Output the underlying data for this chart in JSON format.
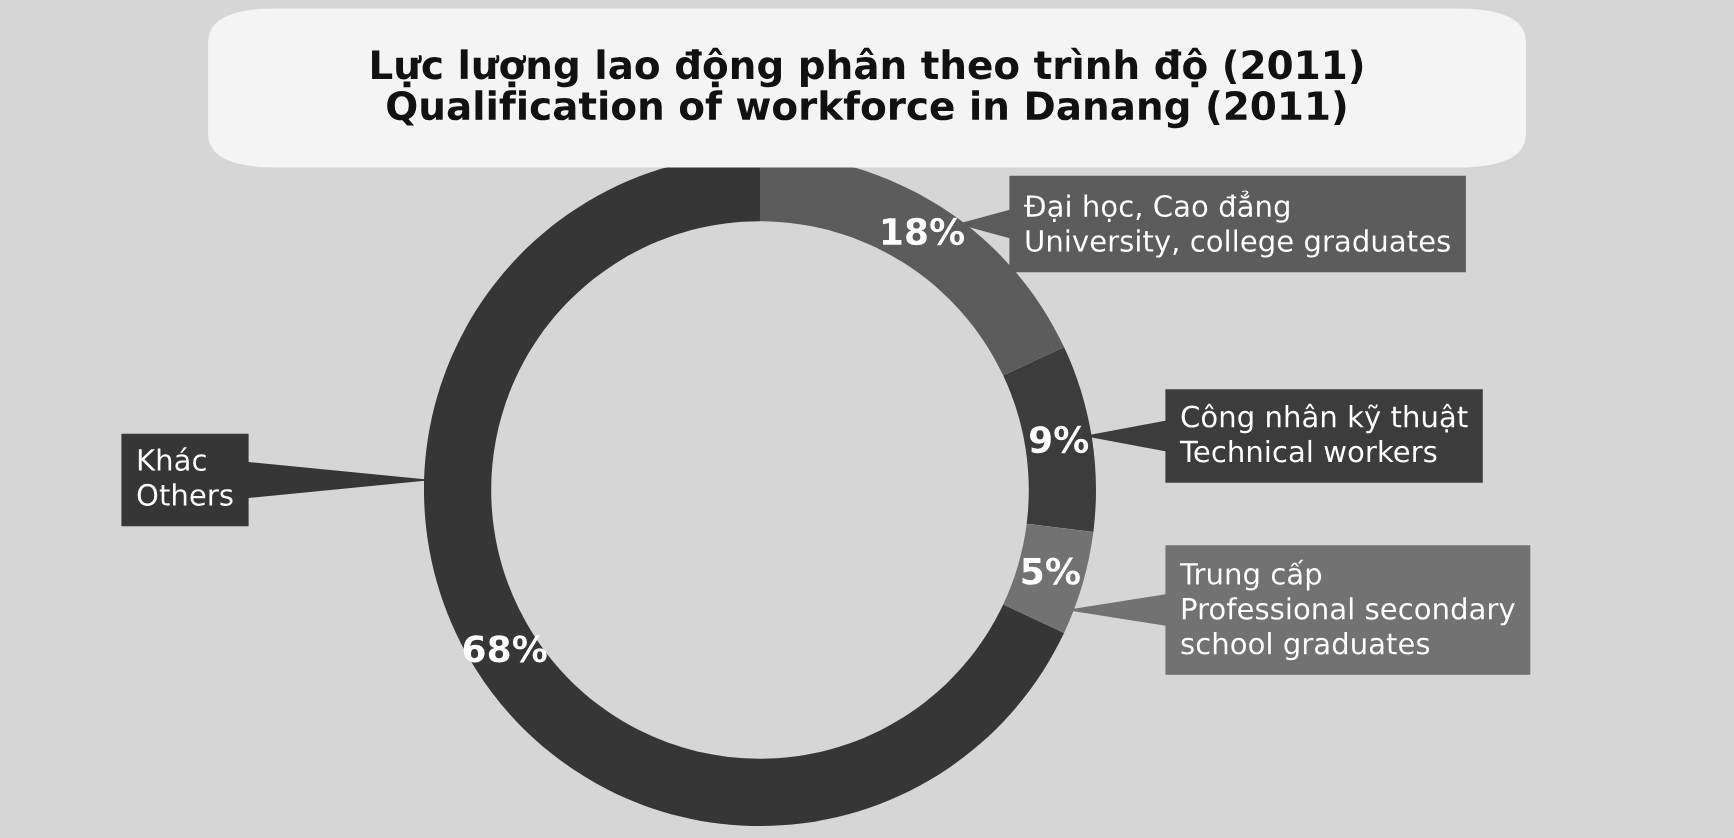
{
  "chart_data": {
    "type": "donut",
    "title": "Lực lượng lao động phân theo trình độ (2011)\nQualification of workforce in Danang (2011)",
    "categories": [
      "Đại học, Cao đẳng\nUniversity, college graduates",
      "Công nhân kỹ thuật\nTechnical workers",
      "Trung cấp\nProfessional secondary\nschool graduates",
      "Khác\nOthers"
    ],
    "values": [
      18,
      9,
      5,
      68
    ],
    "value_labels": [
      "18%",
      "9%",
      "5%",
      "68%"
    ],
    "colors": [
      "#5c5c5c",
      "#3c3c3c",
      "#727272",
      "#363636"
    ],
    "legend": "right"
  }
}
